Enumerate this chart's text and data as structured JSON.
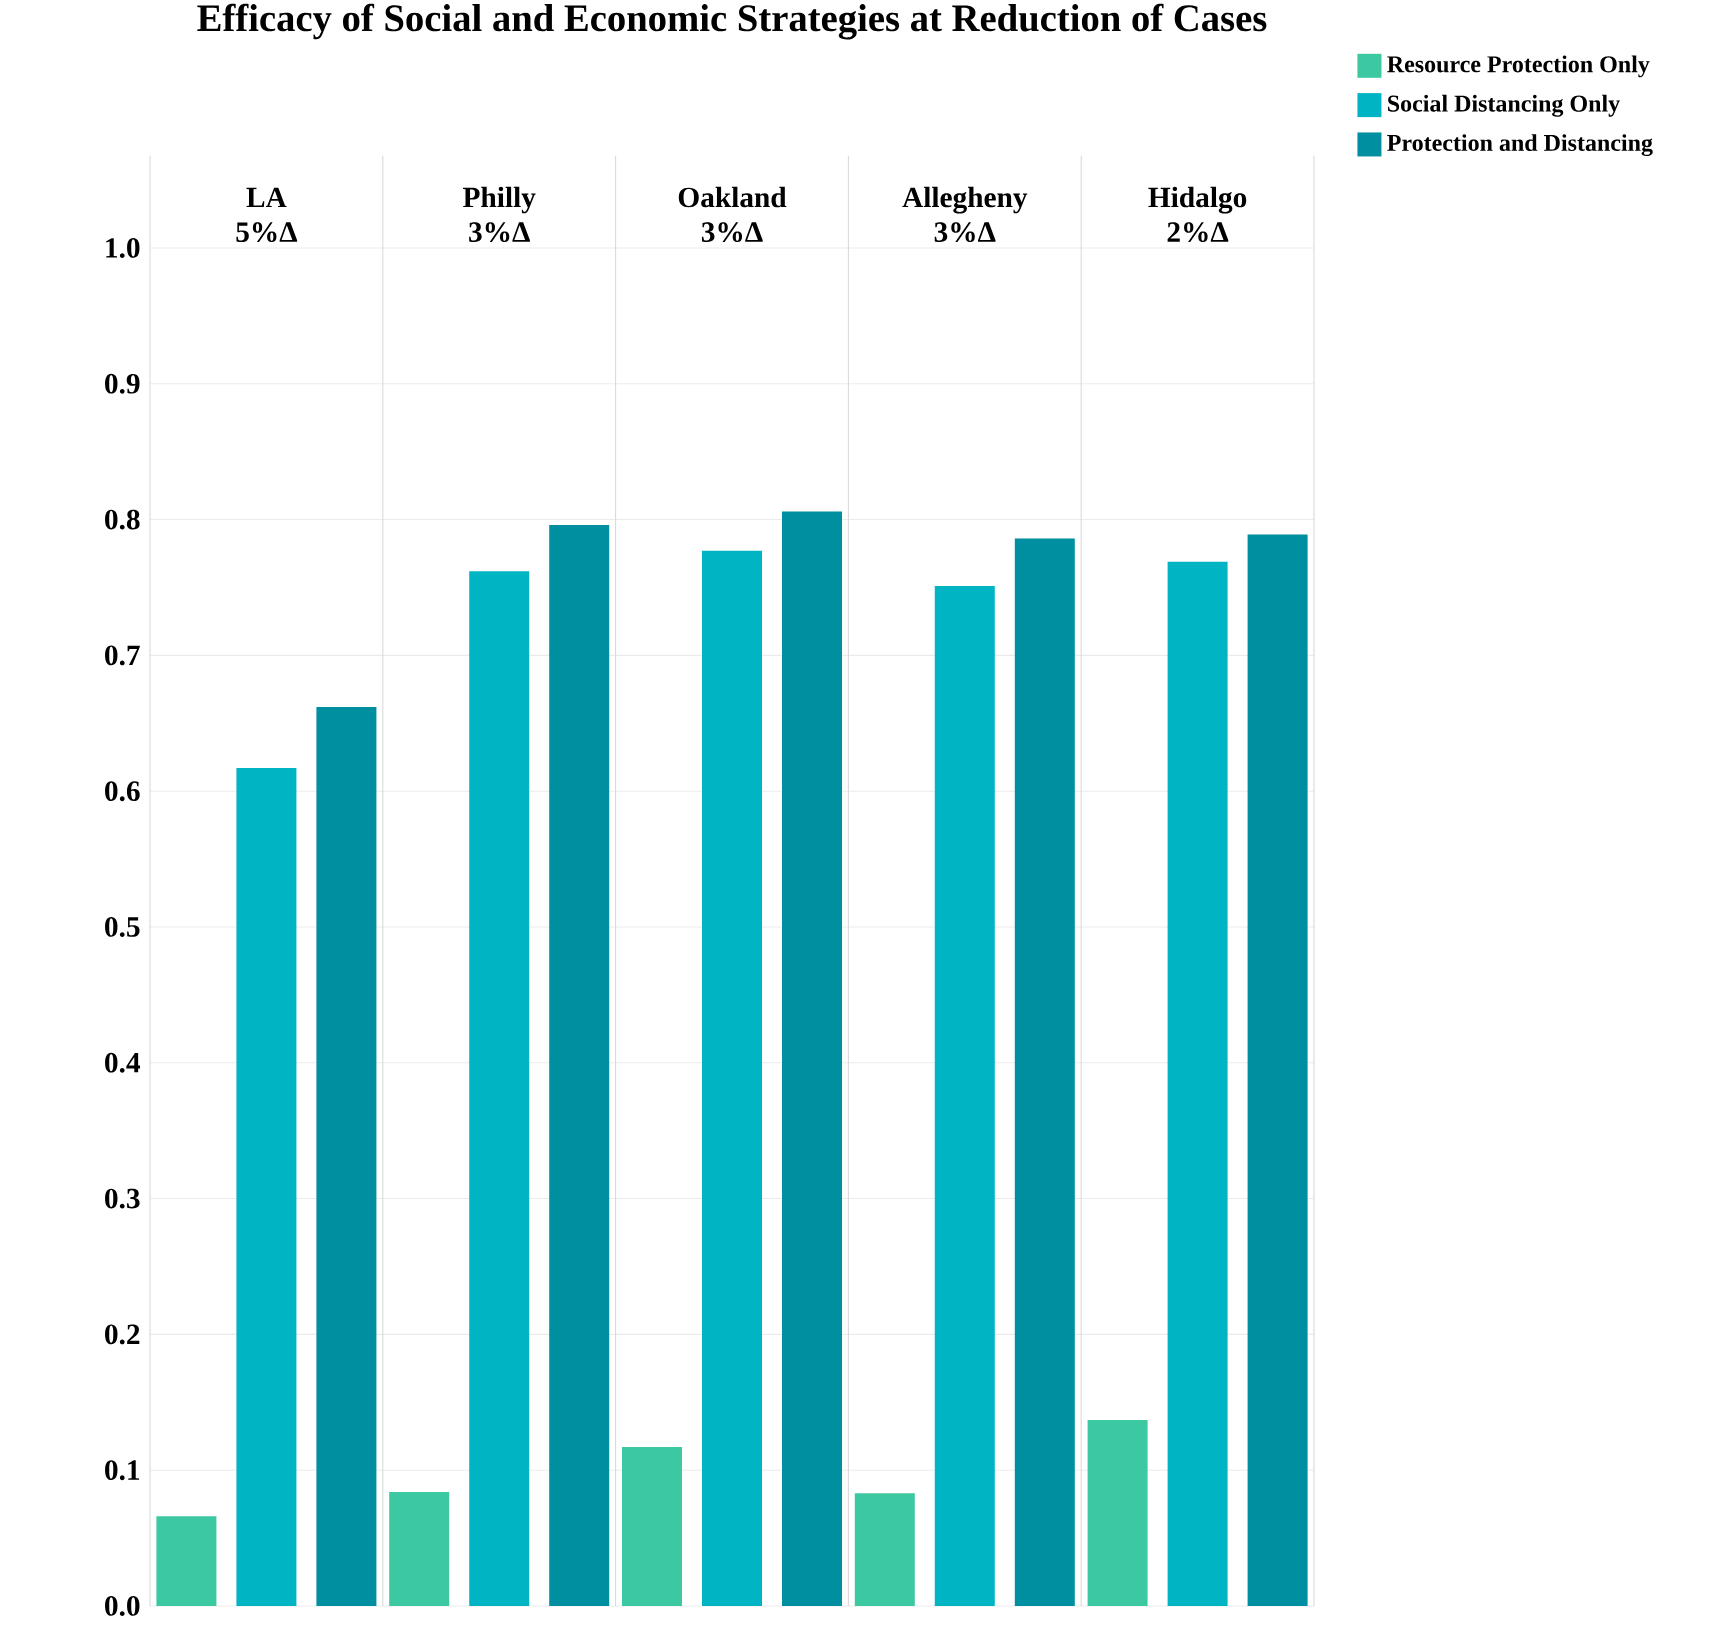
{
  "chart_data": {
    "type": "bar",
    "title": "Efficacy of Social and Economic Strategies at Reduction of Cases",
    "categories": [
      "LA",
      "Philly",
      "Oakland",
      "Allegheny",
      "Hidalgo"
    ],
    "annotations": [
      "5%Δ",
      "3%Δ",
      "3%Δ",
      "3%Δ",
      "2%Δ"
    ],
    "series": [
      {
        "name": "Resource Protection Only",
        "color": "#3cc8a0",
        "values": [
          0.066,
          0.084,
          0.117,
          0.083,
          0.137
        ]
      },
      {
        "name": "Social Distancing Only",
        "color": "#00b4c4",
        "values": [
          0.617,
          0.762,
          0.777,
          0.751,
          0.769
        ]
      },
      {
        "name": "Protection and Distancing",
        "color": "#008fa0",
        "values": [
          0.662,
          0.796,
          0.806,
          0.786,
          0.789
        ]
      }
    ],
    "ylim": [
      0,
      1.0
    ],
    "yticks": [
      {
        "value": 0,
        "label": "0.0"
      },
      0.1,
      0.2,
      0.3,
      0.4,
      0.5,
      0.6,
      0.7,
      0.8,
      0.9,
      {
        "value": 1.0,
        "label": "1.0"
      }
    ],
    "grid": "y",
    "legend": "top right"
  }
}
